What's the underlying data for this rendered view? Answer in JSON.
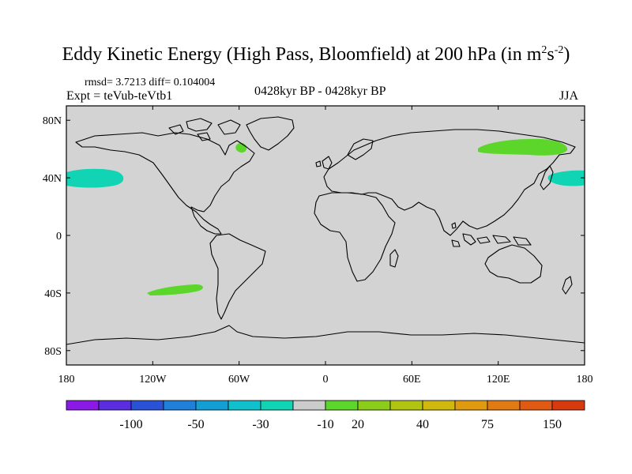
{
  "title": {
    "main": "Eddy Kinetic Energy (High Pass, Bloomfield) at 200 hPa (in m",
    "unit_m_exp": "2",
    "unit_s": "s",
    "unit_s_exp": "-2",
    "close": ")"
  },
  "stats": "rmsd= 3.7213 diff= 0.104004",
  "expt": "Expt = teVub-teVtb1",
  "period": "0428kyr BP - 0428kyr BP",
  "season": "JJA",
  "axes": {
    "lat_labels": [
      "80N",
      "40N",
      "0",
      "40S",
      "80S"
    ],
    "lon_labels": [
      "180",
      "120W",
      "60W",
      "0",
      "60E",
      "120E",
      "180"
    ]
  },
  "colorbar": {
    "labels": [
      "-100",
      "-50",
      "-30",
      "-10",
      "20",
      "40",
      "75",
      "150"
    ],
    "colors": [
      "#8c1ae6",
      "#5a2ee0",
      "#2a52d6",
      "#1f7fd9",
      "#149fd4",
      "#10c0cc",
      "#10d4b4",
      "#cccccc",
      "#5cd62a",
      "#8ccc1a",
      "#b2c412",
      "#d0b80e",
      "#e09a10",
      "#e07a12",
      "#e05a14",
      "#d83a10"
    ]
  },
  "map": {
    "background_color": "#d3d3d3",
    "features": [
      {
        "name": "north-atlantic-negative-anomaly",
        "color": "#10d4b4",
        "lon": -160,
        "lat": 40
      },
      {
        "name": "north-pacific-negative-anomaly",
        "color": "#10d4b4",
        "lon": 175,
        "lat": 40
      },
      {
        "name": "hudson-positive-anomaly",
        "color": "#5cd62a",
        "lon": -57,
        "lat": 57
      },
      {
        "name": "siberia-positive-anomaly",
        "color": "#5cd62a",
        "lon": 125,
        "lat": 59
      },
      {
        "name": "south-pacific-positive-anomaly",
        "color": "#5cd62a",
        "lon": -100,
        "lat": -37
      }
    ]
  }
}
